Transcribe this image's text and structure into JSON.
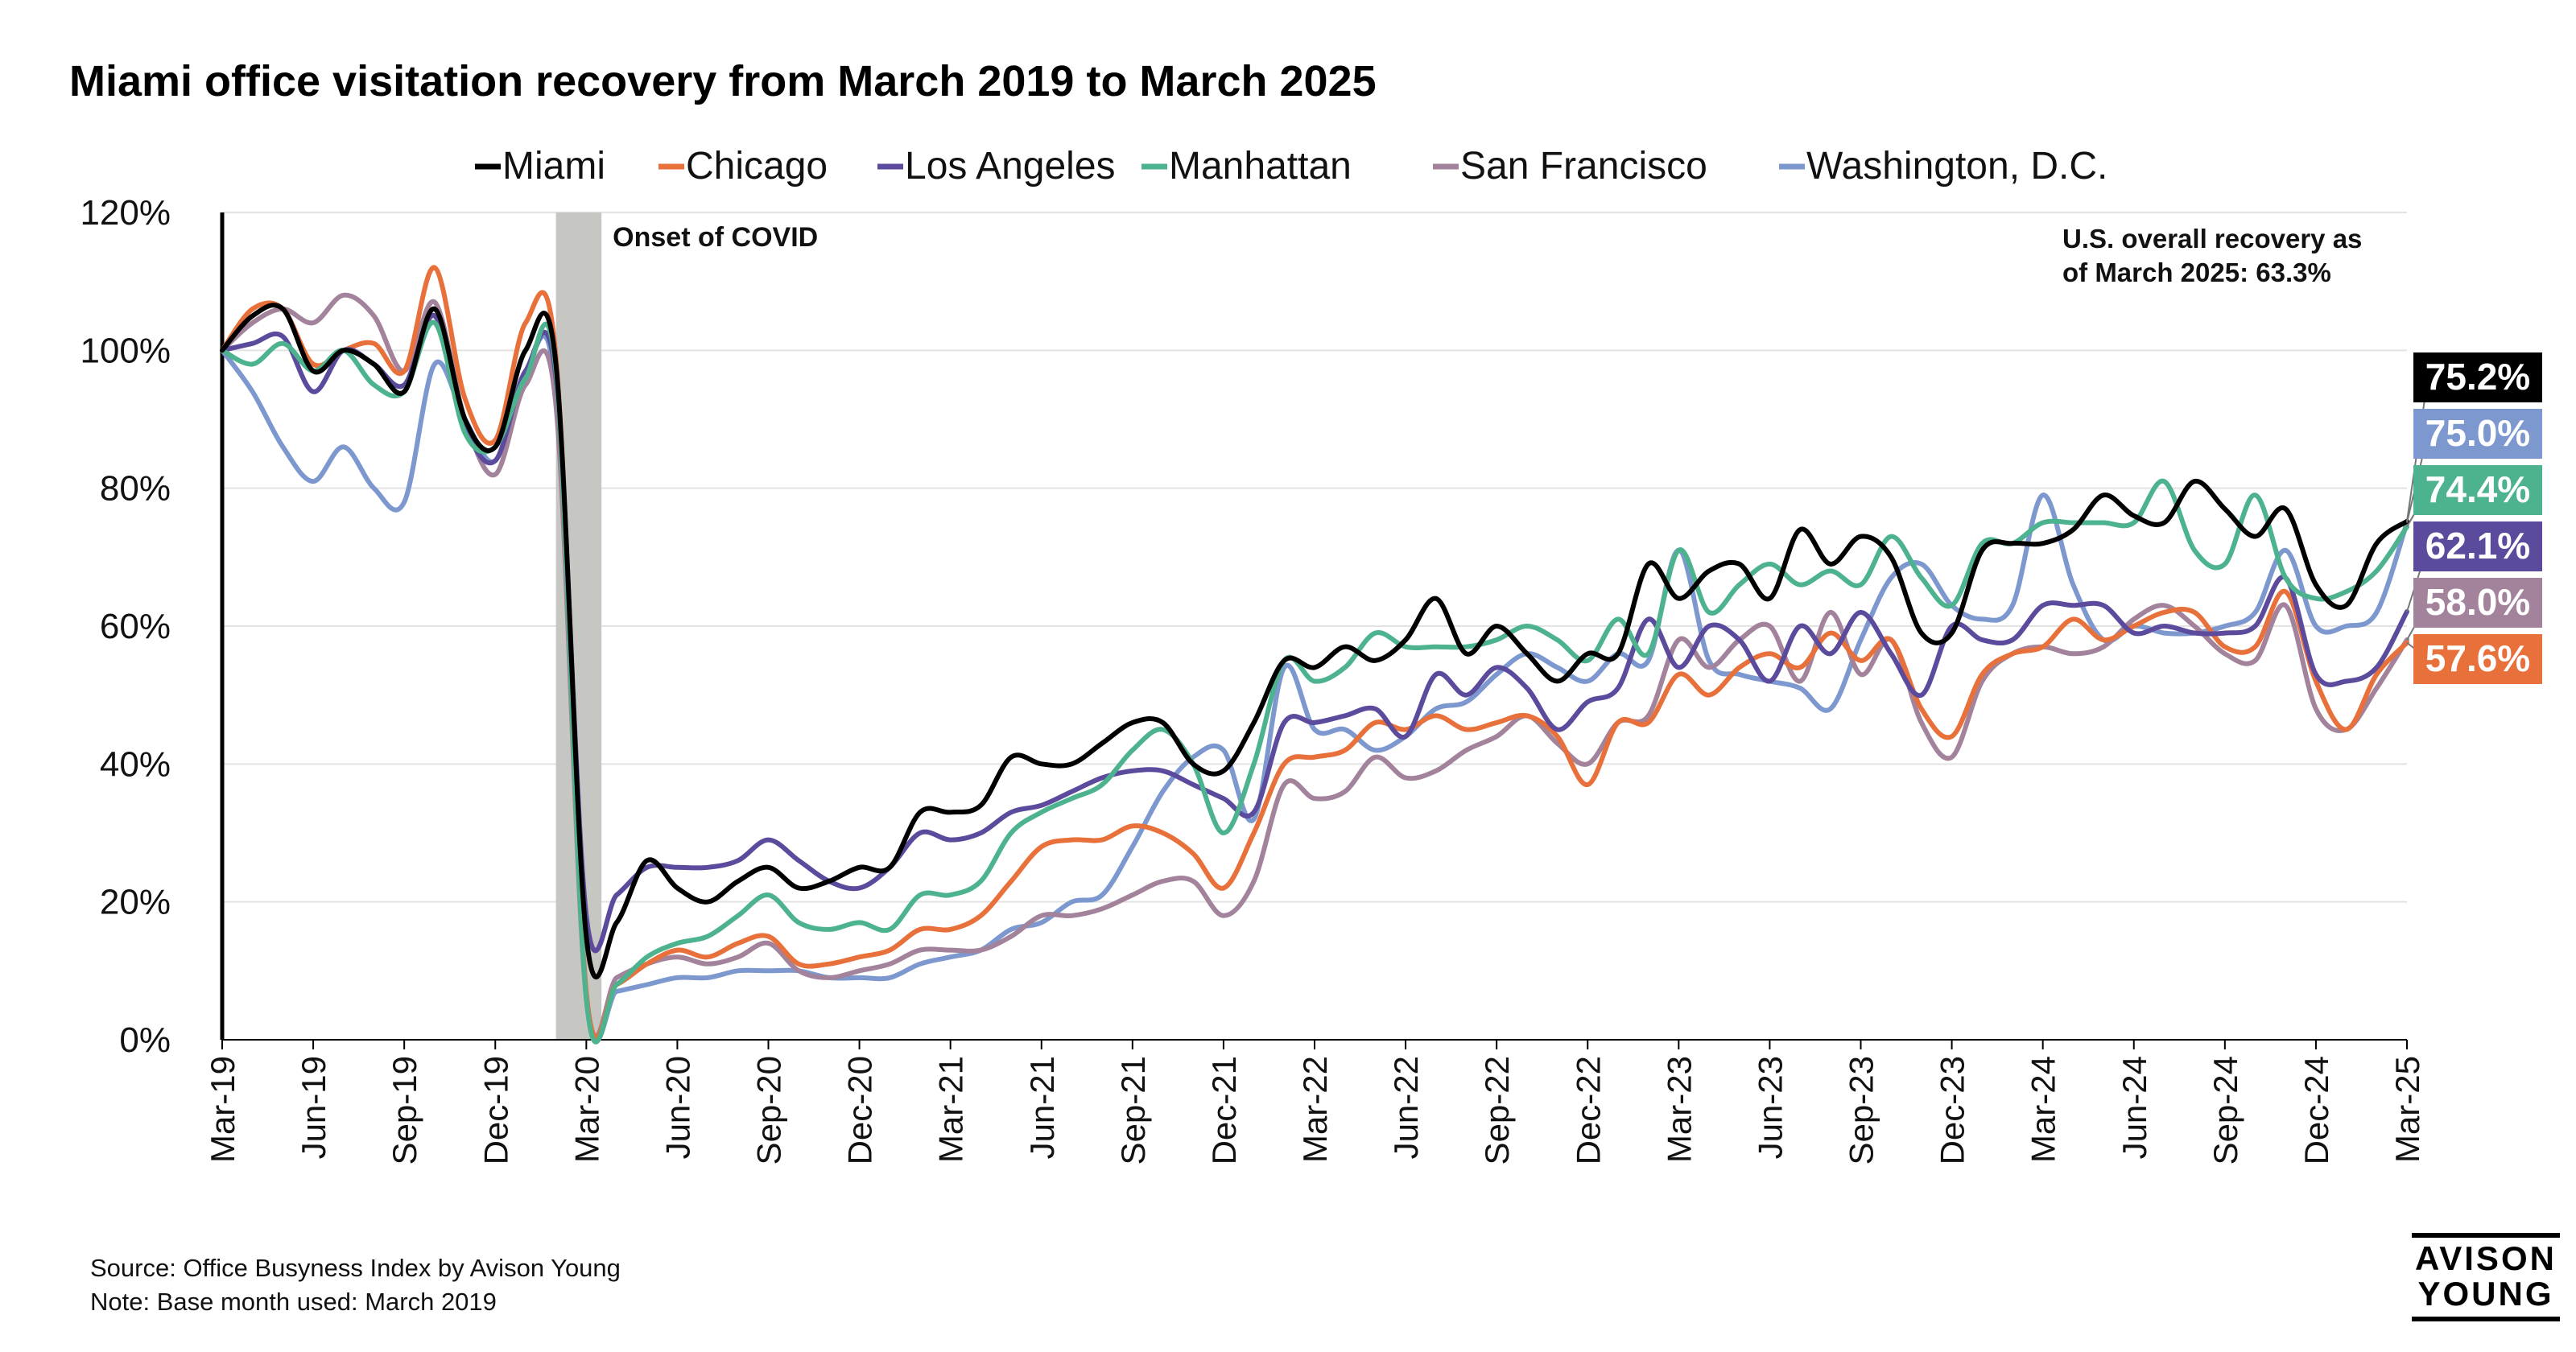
{
  "chart_data": {
    "type": "line",
    "title": "Miami office visitation recovery from March 2019 to March 2025",
    "xlabel": "",
    "ylabel": "",
    "ylim": [
      0,
      120
    ],
    "yticks": [
      0,
      20,
      40,
      60,
      80,
      100,
      120
    ],
    "ytick_labels": [
      "0%",
      "20%",
      "40%",
      "60%",
      "80%",
      "100%",
      "120%"
    ],
    "x_start": "Mar-19",
    "x_end": "Mar-25",
    "num_points": 73,
    "xtick_labels": [
      "Mar-19",
      "Jun-19",
      "Sep-19",
      "Dec-19",
      "Mar-20",
      "Jun-20",
      "Sep-20",
      "Dec-20",
      "Mar-21",
      "Jun-21",
      "Sep-21",
      "Dec-21",
      "Mar-22",
      "Jun-22",
      "Sep-22",
      "Dec-22",
      "Mar-23",
      "Jun-23",
      "Sep-23",
      "Dec-23",
      "Mar-24",
      "Jun-24",
      "Sep-24",
      "Dec-24",
      "Mar-25"
    ],
    "legend": [
      "Miami",
      "Chicago",
      "Los Angeles",
      "Manhattan",
      "San Francisco",
      "Washington, D.C."
    ],
    "legend_position": "top-center",
    "grid": true,
    "shaded_region": {
      "label": "Onset of COVID",
      "from_index": 11,
      "to_index": 12.5
    },
    "annotation": "U.S. overall recovery as of March 2025: 63.3%",
    "series": [
      {
        "name": "Miami",
        "color": "#000000",
        "end_label": "75.2%",
        "label_color": "#000000",
        "values": [
          100,
          105,
          106,
          97,
          100,
          98,
          94,
          106,
          90,
          86,
          100,
          98,
          15,
          17,
          26,
          22,
          20,
          23,
          25,
          22,
          23,
          25,
          25,
          33,
          33,
          34,
          41,
          40,
          40,
          43,
          46,
          46,
          40,
          39,
          46,
          55,
          54,
          57,
          55,
          58,
          64,
          56,
          60,
          56,
          52,
          56,
          56,
          69,
          64,
          68,
          69,
          64,
          74,
          69,
          73,
          70,
          59,
          59,
          71,
          72,
          72,
          74,
          79,
          76,
          75,
          81,
          77,
          73,
          77,
          66,
          63,
          72,
          75.2
        ]
      },
      {
        "name": "Chicago",
        "color": "#e8703a",
        "end_label": "57.6%",
        "label_color": "#e8703a",
        "values": [
          100,
          106,
          106,
          98,
          100,
          101,
          97,
          112,
          93,
          87,
          104,
          99,
          7,
          8,
          11,
          13,
          12,
          14,
          15,
          11,
          11,
          12,
          13,
          16,
          16,
          18,
          23,
          28,
          29,
          29,
          31,
          30,
          27,
          22,
          30,
          40,
          41,
          42,
          46,
          45,
          47,
          45,
          46,
          47,
          44,
          37,
          46,
          46,
          53,
          50,
          54,
          56,
          54,
          59,
          55,
          58,
          48,
          44,
          53,
          56,
          57,
          61,
          58,
          60,
          62,
          62,
          57,
          57,
          65,
          52,
          45,
          53,
          57.6
        ]
      },
      {
        "name": "Los Angeles",
        "color": "#5c4a9c",
        "end_label": "62.1%",
        "label_color": "#5c4a9c",
        "values": [
          100,
          101,
          102,
          94,
          100,
          98,
          95,
          105,
          89,
          84,
          97,
          96,
          18,
          21,
          25,
          25,
          25,
          26,
          29,
          26,
          23,
          22,
          25,
          30,
          29,
          30,
          33,
          34,
          36,
          38,
          39,
          39,
          37,
          35,
          33,
          46,
          46,
          47,
          48,
          44,
          53,
          50,
          54,
          51,
          45,
          49,
          51,
          61,
          54,
          60,
          58,
          52,
          60,
          56,
          62,
          56,
          50,
          60,
          58,
          58,
          63,
          63,
          63,
          59,
          60,
          59,
          59,
          60,
          67,
          53,
          52,
          54,
          62.1
        ]
      },
      {
        "name": "Manhattan",
        "color": "#4db38e",
        "end_label": "74.4%",
        "label_color": "#4db38e",
        "values": [
          100,
          98,
          101,
          97,
          100,
          95,
          94,
          104,
          88,
          86,
          96,
          97,
          6,
          8,
          12,
          14,
          15,
          18,
          21,
          17,
          16,
          17,
          16,
          21,
          21,
          23,
          30,
          33,
          35,
          37,
          42,
          45,
          40,
          30,
          40,
          55,
          52,
          54,
          59,
          57,
          57,
          57,
          58,
          60,
          58,
          55,
          61,
          56,
          71,
          62,
          66,
          69,
          66,
          68,
          66,
          73,
          67,
          63,
          72,
          72,
          75,
          75,
          75,
          75,
          81,
          71,
          69,
          79,
          67,
          64,
          65,
          68,
          74.4
        ]
      },
      {
        "name": "San Francisco",
        "color": "#a3839c",
        "end_label": "58.0%",
        "label_color": "#a3839c",
        "values": [
          100,
          104,
          106,
          104,
          108,
          105,
          97,
          107,
          90,
          82,
          95,
          92,
          6,
          9,
          11,
          12,
          11,
          12,
          14,
          10,
          9,
          10,
          11,
          13,
          13,
          13,
          15,
          18,
          18,
          19,
          21,
          23,
          23,
          18,
          23,
          37,
          35,
          36,
          41,
          38,
          39,
          42,
          44,
          47,
          43,
          40,
          46,
          47,
          58,
          54,
          58,
          60,
          52,
          62,
          53,
          58,
          46,
          41,
          52,
          56,
          57,
          56,
          57,
          61,
          63,
          60,
          56,
          55,
          63,
          48,
          45,
          51,
          58.0
        ]
      },
      {
        "name": "Washington, D.C.",
        "color": "#7d98cf",
        "end_label": "75.0%",
        "label_color": "#7d98cf",
        "values": [
          100,
          94,
          86,
          81,
          86,
          80,
          78,
          98,
          90,
          84,
          97,
          94,
          6,
          7,
          8,
          9,
          9,
          10,
          10,
          10,
          9,
          9,
          9,
          11,
          12,
          13,
          16,
          17,
          20,
          21,
          28,
          36,
          41,
          42,
          32,
          54,
          45,
          45,
          42,
          44,
          48,
          49,
          53,
          56,
          54,
          52,
          56,
          55,
          71,
          55,
          53,
          52,
          51,
          48,
          58,
          67,
          69,
          63,
          61,
          63,
          79,
          66,
          58,
          60,
          59,
          59,
          60,
          62,
          71,
          60,
          60,
          62,
          75.0
        ]
      }
    ]
  },
  "footer": {
    "source": "Source: Office Busyness Index by Avison Young",
    "note": "Note: Base month used: March 2019",
    "logo_line1": "AVISON",
    "logo_line2": "YOUNG"
  }
}
